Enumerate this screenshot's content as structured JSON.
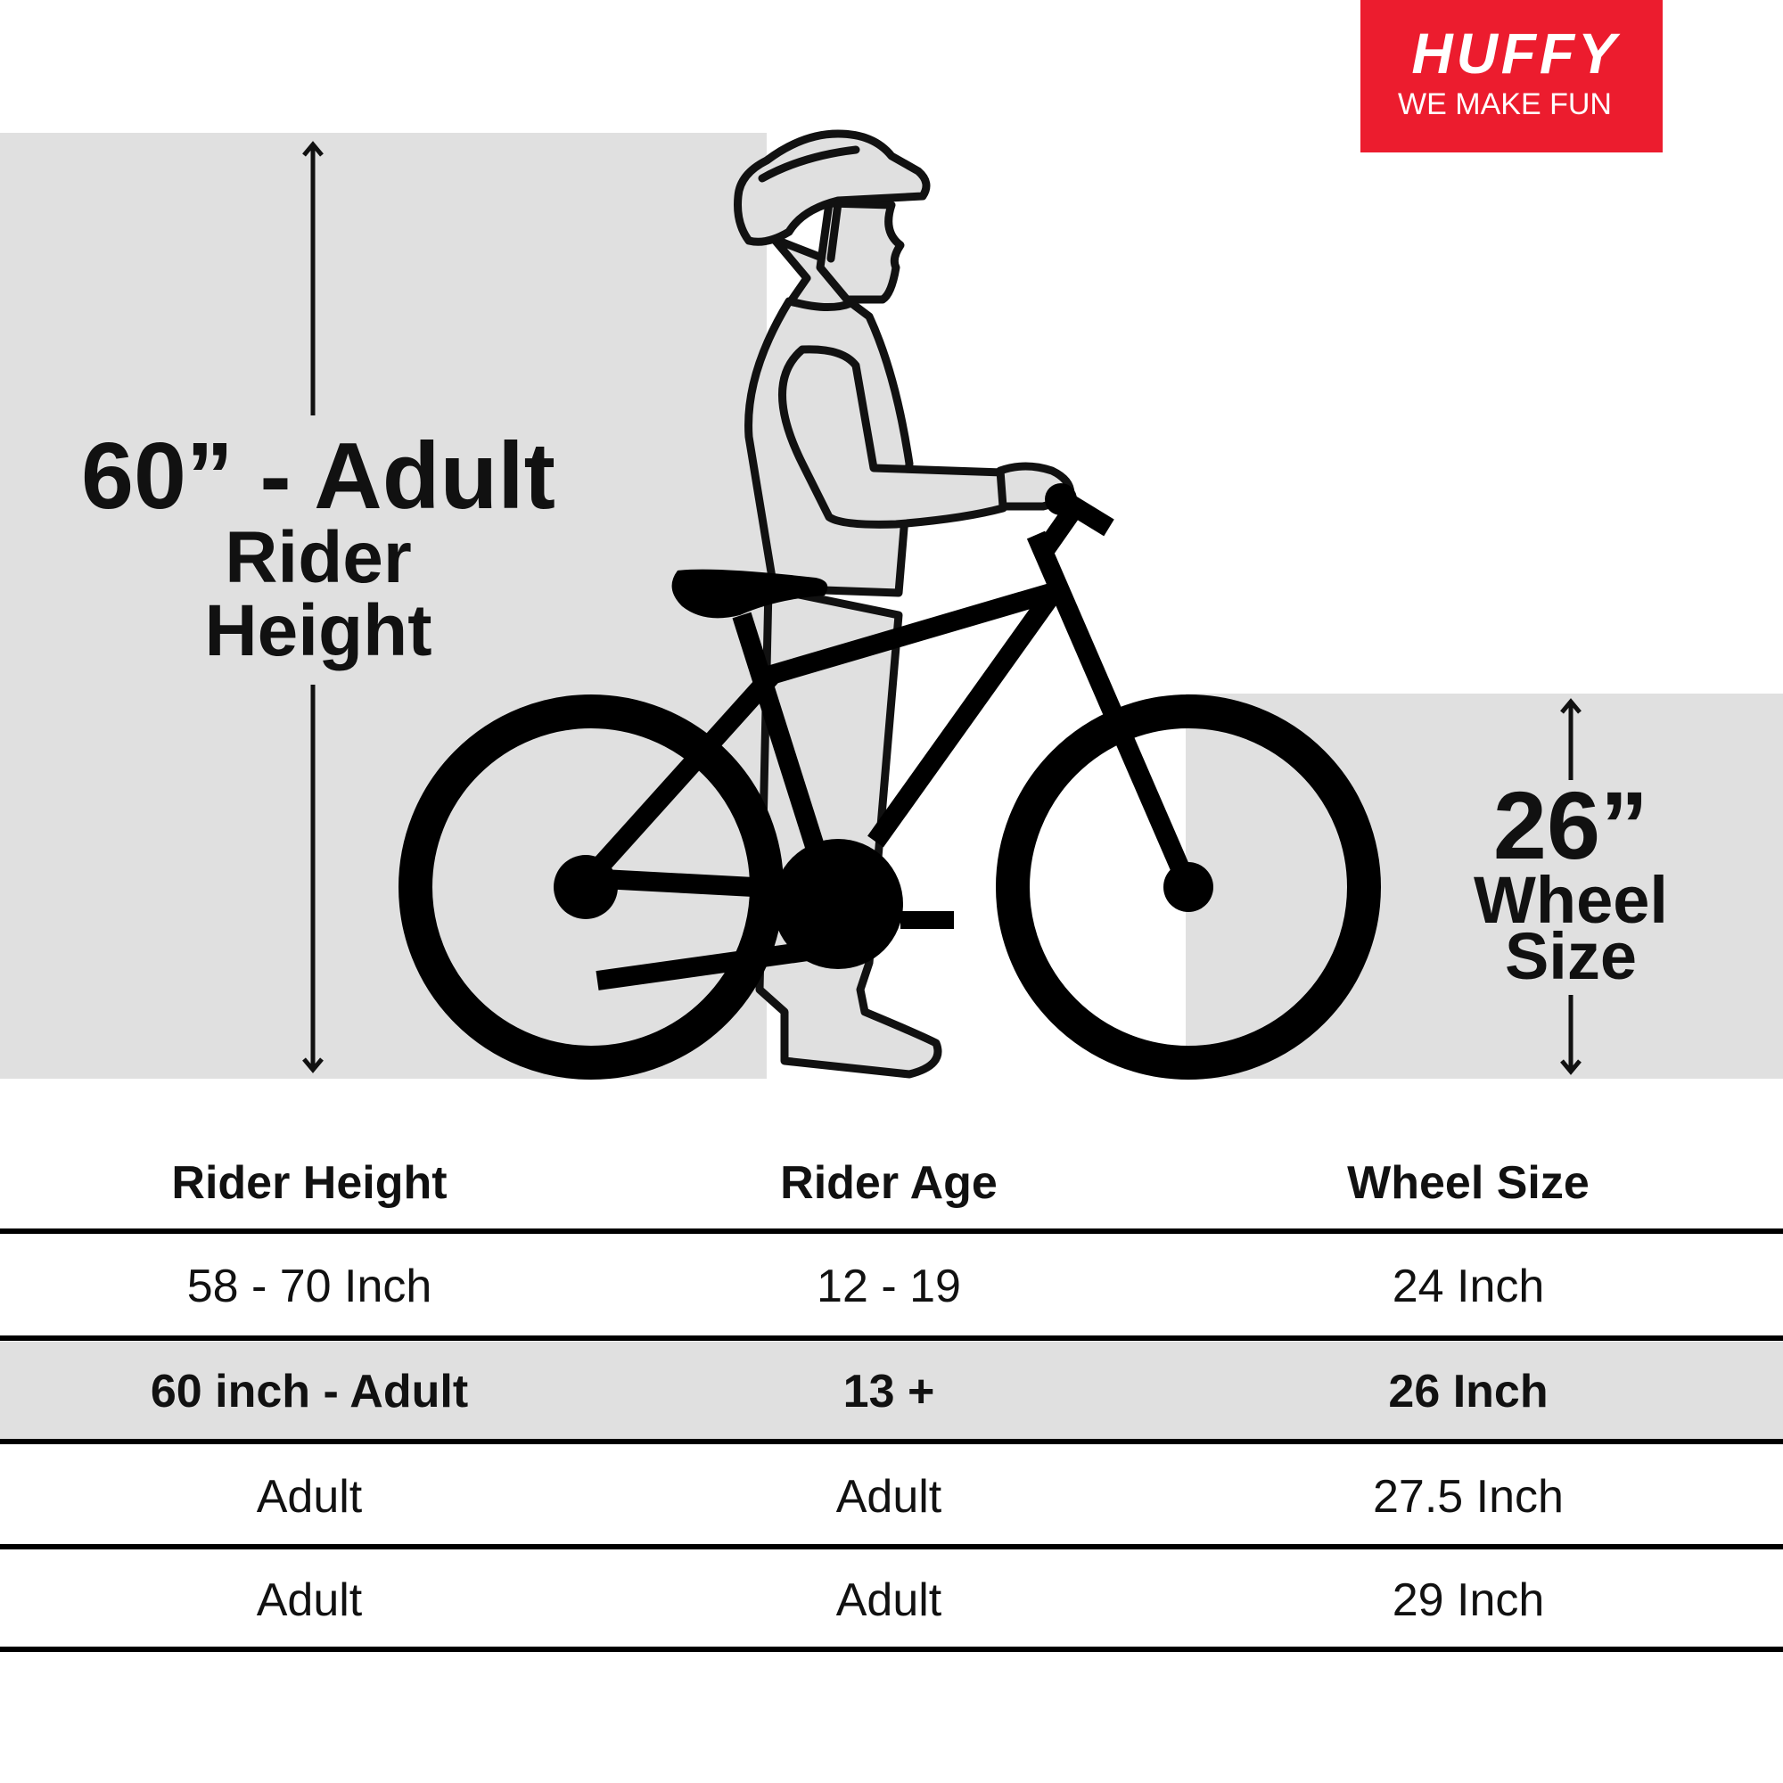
{
  "brand": {
    "name": "HUFFY",
    "tagline": "WE MAKE FUN",
    "color": "#ec1c2e",
    "text_color": "#ffffff"
  },
  "colors": {
    "panel_gray": "#e0e0e0",
    "ink": "#111111"
  },
  "rider_callout": {
    "value": "60” - Adult",
    "line1": "Rider",
    "line2": "Height",
    "icon": "double-arrow-vertical"
  },
  "wheel_callout": {
    "value": "26”",
    "line1": "Wheel",
    "line2": "Size",
    "icon": "double-arrow-vertical"
  },
  "illustration": "rider-with-bicycle",
  "size_table": {
    "headers": [
      "Rider Height",
      "Rider Age",
      "Wheel Size"
    ],
    "rows": [
      {
        "cells": [
          "58 - 70 Inch",
          "12 - 19",
          "24 Inch"
        ],
        "highlighted": false
      },
      {
        "cells": [
          "60 inch - Adult",
          "13 +",
          "26 Inch"
        ],
        "highlighted": true
      },
      {
        "cells": [
          "Adult",
          "Adult",
          "27.5 Inch"
        ],
        "highlighted": false
      },
      {
        "cells": [
          "Adult",
          "Adult",
          "29 Inch"
        ],
        "highlighted": false
      }
    ]
  }
}
